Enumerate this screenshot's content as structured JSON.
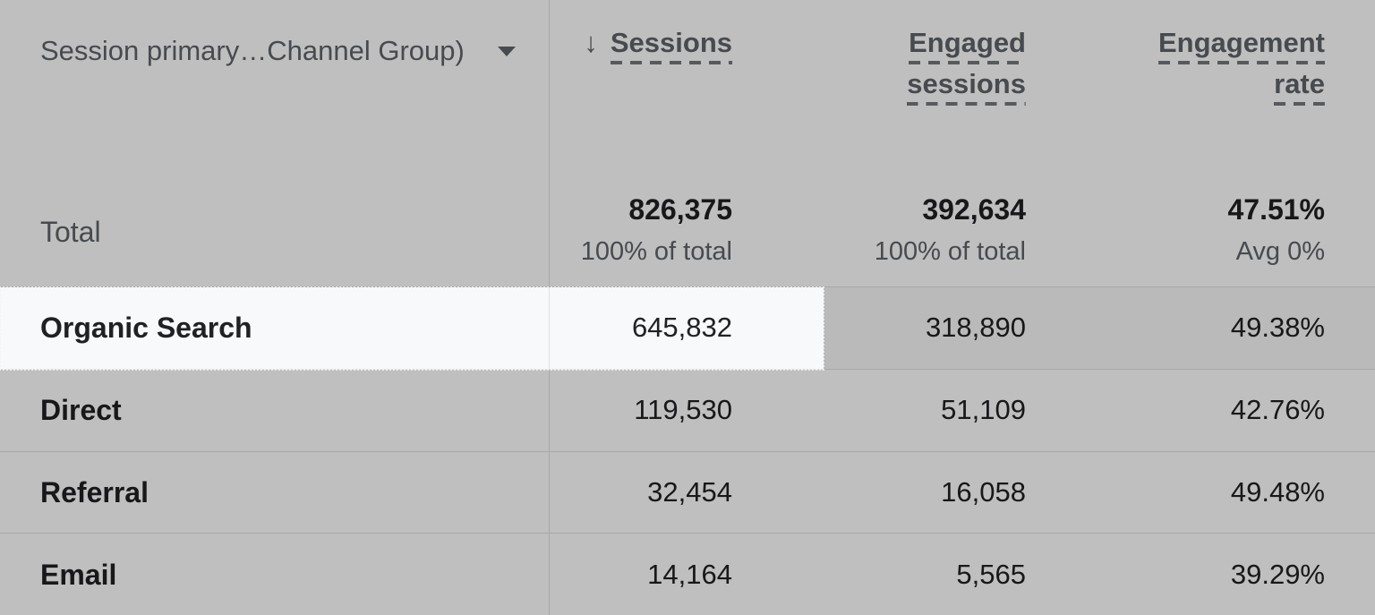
{
  "colors": {
    "dim_overlay": "rgba(0,0,0,0.25)",
    "table_background": "#ffffff",
    "highlighted_row_background": "#f8f9fa",
    "primary_text": "#202124",
    "secondary_text": "#5f6368",
    "divider": "#e0e0e0"
  },
  "header": {
    "dimension": {
      "label": "Session primary…Channel Group)",
      "caret_icon": "caret-down"
    },
    "metrics": [
      {
        "lines": [
          "Sessions"
        ],
        "sort_icon": "↓"
      },
      {
        "lines": [
          "Engaged",
          "sessions"
        ]
      },
      {
        "lines": [
          "Engagement",
          "rate"
        ]
      }
    ]
  },
  "total_row": {
    "label": "Total",
    "metrics": [
      {
        "value": "826,375",
        "note": "100% of total"
      },
      {
        "value": "392,634",
        "note": "100% of total"
      },
      {
        "value": "47.51%",
        "note": "Avg 0%"
      }
    ]
  },
  "rows": [
    {
      "label": "Organic Search",
      "values": [
        "645,832",
        "318,890",
        "49.38%"
      ],
      "highlighted": true
    },
    {
      "label": "Direct",
      "values": [
        "119,530",
        "51,109",
        "42.76%"
      ],
      "highlighted": false
    },
    {
      "label": "Referral",
      "values": [
        "32,454",
        "16,058",
        "49.48%"
      ],
      "highlighted": false
    },
    {
      "label": "Email",
      "values": [
        "14,164",
        "5,565",
        "39.29%"
      ],
      "highlighted": false
    }
  ]
}
